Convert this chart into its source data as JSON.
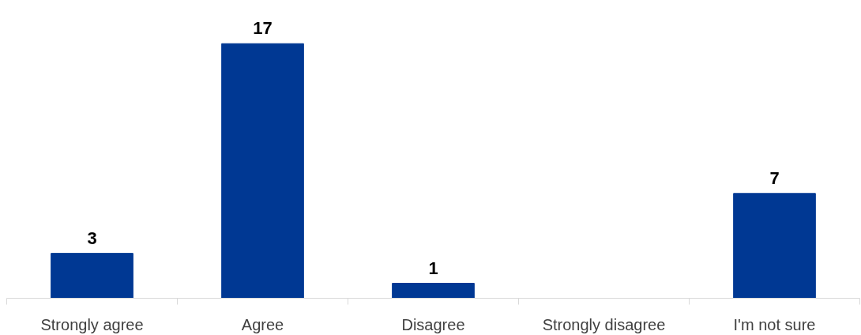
{
  "chart_data": {
    "type": "bar",
    "categories": [
      "Strongly agree",
      "Agree",
      "Disagree",
      "Strongly disagree",
      "I'm not sure"
    ],
    "values": [
      3,
      17,
      1,
      0,
      7
    ],
    "color": "#003893",
    "value_labels": [
      "3",
      "17",
      "1",
      null,
      "7"
    ],
    "grid": false
  }
}
